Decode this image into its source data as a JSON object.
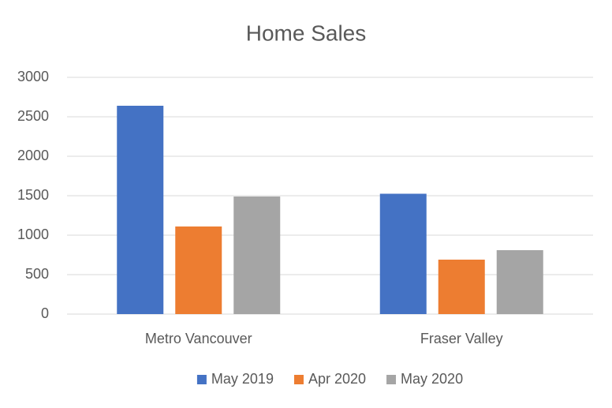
{
  "chart_data": {
    "type": "bar",
    "title": "Home Sales",
    "categories": [
      "Metro Vancouver",
      "Fraser Valley"
    ],
    "series": [
      {
        "name": "May 2019",
        "color": "#4472c4",
        "values": [
          2640,
          1525
        ]
      },
      {
        "name": "Apr 2020",
        "color": "#ed7d31",
        "values": [
          1110,
          690
        ]
      },
      {
        "name": "May 2020",
        "color": "#a5a5a5",
        "values": [
          1490,
          810
        ]
      }
    ],
    "ylim": [
      0,
      3000
    ],
    "yticks": [
      0,
      500,
      1000,
      1500,
      2000,
      2500,
      3000
    ],
    "grid": true,
    "legend": "bottom"
  }
}
